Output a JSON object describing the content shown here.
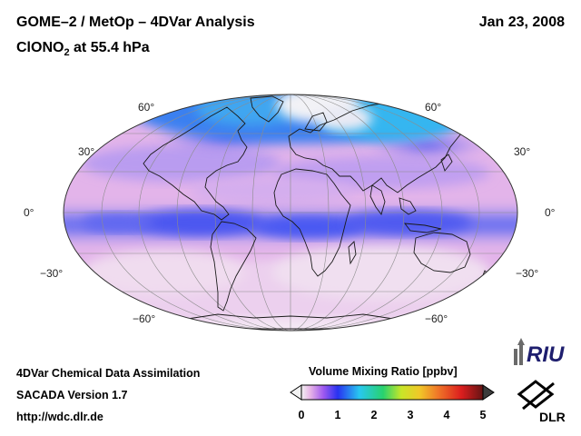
{
  "header": {
    "title_line1": "GOME–2 / MetOp – 4DVar Analysis",
    "title_line2_prefix": "ClONO",
    "title_line2_sub": "2",
    "title_line2_suffix": " at 55.4 hPa",
    "date": "Jan 23, 2008"
  },
  "map": {
    "projection": "Mollweide",
    "lat_labels": {
      "n60": "60°",
      "n30": "30°",
      "eq": "0°",
      "s30": "−30°",
      "s60": "−60°"
    },
    "colors": {
      "background_field": "#e6b2e6",
      "tropical_band": "#5a63f0",
      "polar_vortex": "#3ab2f0",
      "coastline": "#1a1a1a",
      "grid": "#8c8c8c"
    }
  },
  "footer": {
    "line1": "4DVar Chemical Data Assimilation",
    "line2": "SACADA Version 1.7",
    "line3": "http://wdc.dlr.de"
  },
  "colorbar": {
    "title": "Volume Mixing Ratio [ppbv]",
    "ticks": [
      "0",
      "1",
      "2",
      "3",
      "4",
      "5"
    ],
    "colors": [
      "#f2f2f2",
      "#e6b3e6",
      "#a05af0",
      "#2832f0",
      "#28c8f0",
      "#28d26e",
      "#c8e628",
      "#f0c828",
      "#f07828",
      "#dc1e1e",
      "#641414"
    ]
  },
  "logos": {
    "riu": "RIU",
    "dlr": "DLR"
  }
}
